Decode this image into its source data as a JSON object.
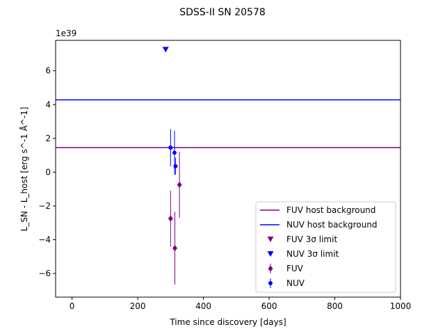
{
  "chart_data": {
    "type": "scatter",
    "title": "SDSS-II SN 20578",
    "xlabel": "Time since discovery [days]",
    "ylabel": "L_SN - L_host [erg s^-1 Å^-1]",
    "y_offset_label": "1e39",
    "xlim": [
      -50,
      1000
    ],
    "ylim": [
      -7.4,
      7.8
    ],
    "x_ticks": [
      0,
      200,
      400,
      600,
      800,
      1000
    ],
    "y_ticks": [
      -6,
      -4,
      -2,
      0,
      2,
      4,
      6
    ],
    "x_tick_labels": [
      "0",
      "200",
      "400",
      "600",
      "800",
      "1000"
    ],
    "y_tick_labels": [
      "−6",
      "−4",
      "−2",
      "0",
      "2",
      "4",
      "6"
    ],
    "grid": false,
    "legend_position": "lower-right",
    "colors": {
      "fuv": "#800080",
      "nuv": "#0000ff"
    },
    "host_background": [
      {
        "name": "FUV host background",
        "value": 1.45,
        "color": "#800080"
      },
      {
        "name": "NUV host background",
        "value": 4.28,
        "color": "#0000ff"
      }
    ],
    "upper_limits": [
      {
        "name": "FUV 3σ limit",
        "color": "#800080",
        "points": []
      },
      {
        "name": "NUV 3σ limit",
        "color": "#0000ff",
        "points": [
          {
            "x": 285,
            "y": 7.25
          }
        ]
      }
    ],
    "series": [
      {
        "name": "FUV",
        "marker": "diamond",
        "color": "#800080",
        "points": [
          {
            "x": 300,
            "y": -2.75,
            "yerr": 1.65
          },
          {
            "x": 313,
            "y": -4.5,
            "yerr": 2.15
          },
          {
            "x": 327,
            "y": -0.75,
            "yerr": 1.95
          }
        ]
      },
      {
        "name": "NUV",
        "marker": "circle",
        "color": "#0000ff",
        "points": [
          {
            "x": 300,
            "y": 1.45,
            "yerr": 1.1
          },
          {
            "x": 312,
            "y": 1.15,
            "yerr": 1.3
          },
          {
            "x": 315,
            "y": 0.35,
            "yerr": 0.5
          }
        ]
      }
    ],
    "legend": [
      {
        "label": "FUV host background",
        "kind": "line",
        "color": "#800080"
      },
      {
        "label": "NUV host background",
        "kind": "line",
        "color": "#0000ff"
      },
      {
        "label": "FUV 3σ limit",
        "kind": "triangle",
        "color": "#800080"
      },
      {
        "label": "NUV 3σ limit",
        "kind": "triangle",
        "color": "#0000ff"
      },
      {
        "label": "FUV",
        "kind": "diamond",
        "color": "#800080"
      },
      {
        "label": "NUV",
        "kind": "circle",
        "color": "#0000ff"
      }
    ]
  }
}
